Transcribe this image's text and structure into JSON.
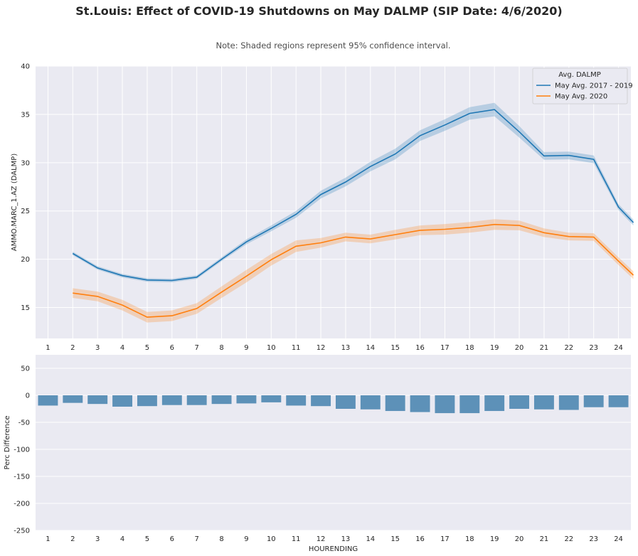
{
  "title": "St.Louis: Effect of COVID-19 Shutdowns on May DALMP (SIP Date: 4/6/2020)",
  "subtitle": "Note: Shaded regions represent 95% confidence interval.",
  "colors": {
    "series1": "#1f77b4",
    "series2": "#ff7f0e",
    "bars": "#5d91b8",
    "axes_bg": "#eaeaf2",
    "grid": "#ffffff"
  },
  "chart_data": [
    {
      "type": "line",
      "ylabel": "AMMO.MARC_1.AZ (DALMP)",
      "xlabel": "",
      "x": [
        1,
        2,
        3,
        4,
        5,
        6,
        7,
        8,
        9,
        10,
        11,
        12,
        13,
        14,
        15,
        16,
        17,
        18,
        19,
        20,
        21,
        22,
        23,
        24
      ],
      "x_ticks": [
        "1",
        "2",
        "3",
        "4",
        "5",
        "6",
        "7",
        "8",
        "9",
        "10",
        "11",
        "12",
        "13",
        "14",
        "15",
        "16",
        "17",
        "18",
        "19",
        "20",
        "21",
        "22",
        "23",
        "24"
      ],
      "y_ticks": [
        "15",
        "20",
        "25",
        "30",
        "35",
        "40"
      ],
      "ylim": [
        11.8,
        40
      ],
      "legend": {
        "title": "Avg. DALMP",
        "position": "top-right"
      },
      "series": [
        {
          "name": "May Avg. 2017 - 2019",
          "x": [
            2,
            3,
            4,
            5,
            6,
            7,
            8,
            9,
            10,
            11,
            12,
            13,
            14,
            15,
            16,
            17,
            18,
            19,
            20,
            21,
            22,
            23,
            24,
            24.6
          ],
          "values": [
            20.6,
            19.1,
            18.3,
            17.85,
            17.8,
            18.15,
            20.0,
            21.8,
            23.2,
            24.65,
            26.7,
            28.0,
            29.6,
            30.9,
            32.8,
            33.9,
            35.1,
            35.5,
            33.2,
            30.7,
            30.75,
            30.35,
            25.4,
            23.8
          ],
          "ci": [
            0.18,
            0.18,
            0.18,
            0.18,
            0.18,
            0.18,
            0.2,
            0.25,
            0.3,
            0.35,
            0.4,
            0.45,
            0.5,
            0.55,
            0.55,
            0.6,
            0.65,
            0.7,
            0.6,
            0.4,
            0.4,
            0.4,
            0.3,
            0.3
          ]
        },
        {
          "name": "May Avg. 2020",
          "x": [
            2,
            3,
            4,
            5,
            6,
            7,
            8,
            9,
            10,
            11,
            12,
            13,
            14,
            15,
            16,
            17,
            18,
            19,
            20,
            21,
            22,
            23,
            24,
            24.6
          ],
          "values": [
            16.5,
            16.15,
            15.25,
            14.0,
            14.15,
            14.9,
            16.6,
            18.25,
            19.95,
            21.35,
            21.7,
            22.3,
            22.1,
            22.55,
            23.0,
            23.1,
            23.3,
            23.6,
            23.5,
            22.75,
            22.35,
            22.3,
            19.8,
            18.35
          ],
          "ci": [
            0.5,
            0.5,
            0.55,
            0.55,
            0.55,
            0.55,
            0.6,
            0.65,
            0.6,
            0.6,
            0.5,
            0.45,
            0.45,
            0.5,
            0.5,
            0.55,
            0.55,
            0.55,
            0.5,
            0.45,
            0.4,
            0.4,
            0.4,
            0.4
          ]
        }
      ]
    },
    {
      "type": "bar",
      "xlabel": "HOURENDING",
      "ylabel": "Perc Difference",
      "categories": [
        "1",
        "2",
        "3",
        "4",
        "5",
        "6",
        "7",
        "8",
        "9",
        "10",
        "11",
        "12",
        "13",
        "14",
        "15",
        "16",
        "17",
        "18",
        "19",
        "20",
        "21",
        "22",
        "23",
        "24"
      ],
      "values": [
        -19,
        -14,
        -16,
        -21,
        -20,
        -18,
        -18,
        -16,
        -15,
        -13,
        -19,
        -20,
        -25,
        -26,
        -29,
        -31,
        -33,
        -33,
        -29,
        -25,
        -26,
        -27,
        -22,
        -22
      ],
      "y_ticks": [
        "50",
        "0",
        "-50",
        "-100",
        "-150",
        "-200",
        "-250"
      ],
      "ylim": [
        -250,
        75
      ]
    }
  ]
}
